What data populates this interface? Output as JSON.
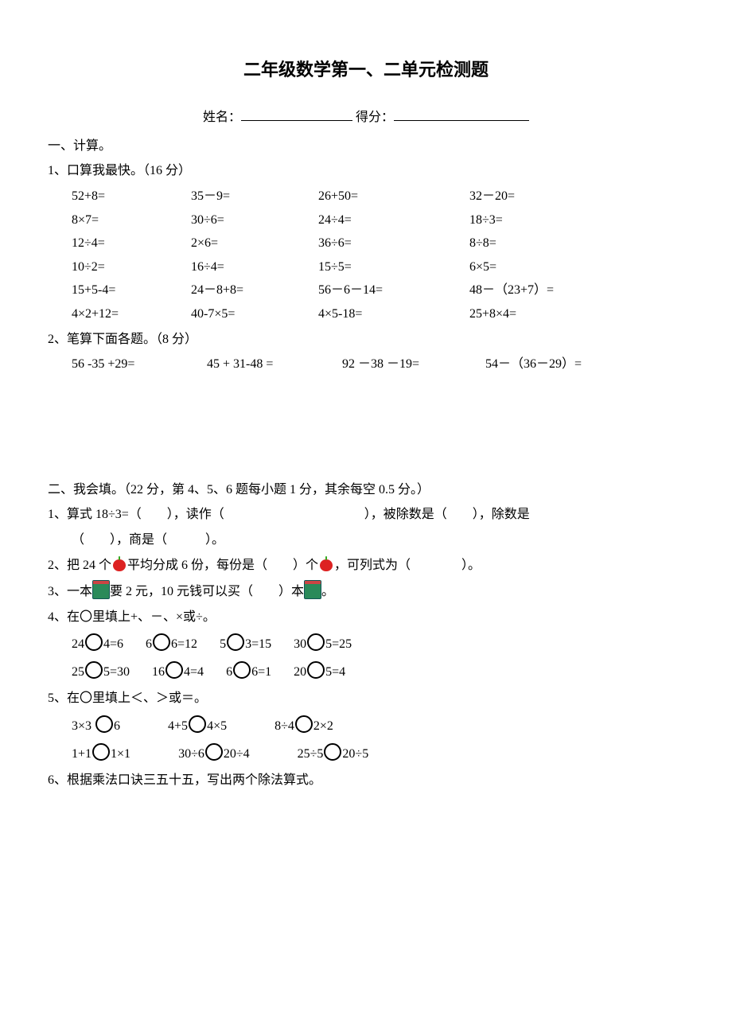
{
  "title": "二年级数学第一、二单元检测题",
  "info": {
    "name_label": "姓名：",
    "score_label": "得分："
  },
  "s1": {
    "heading": "一、计算。",
    "q1": {
      "label": "1、口算我最快。（16 分）",
      "rows": [
        [
          "52+8=",
          "35－9=",
          "26+50=",
          "32－20="
        ],
        [
          "8×7=",
          "30÷6=",
          "24÷4=",
          "18÷3="
        ],
        [
          "12÷4=",
          "2×6=",
          "36÷6=",
          "8÷8="
        ],
        [
          "10÷2=",
          "16÷4=",
          "15÷5=",
          "6×5="
        ],
        [
          "15+5-4=",
          "24－8+8=",
          "56－6－14=",
          "48－（23+7）="
        ],
        [
          "4×2+12=",
          "40-7×5=",
          "4×5-18=",
          "25+8×4="
        ]
      ]
    },
    "q2": {
      "label": "2、笔算下面各题。（8 分）",
      "rows": [
        [
          "56 -35 +29=",
          "45 + 31-48 =",
          "92 －38 －19=",
          "54－（36－29）="
        ]
      ]
    }
  },
  "s2": {
    "heading": "二、我会填。（22 分，第 4、5、6 题每小题 1 分，其余每空 0.5 分。）",
    "q1a": "1、算式 18÷3=（　　），读作（　　　　　　　　　　　），被除数是（　　），除数是",
    "q1b": "（　　），商是（　　　）。",
    "q2a": "2、把 24 个",
    "q2b": "平均分成 6 份，每份是（　　）个",
    "q2c": "，可列式为（　　　　）。",
    "q3a": "3、一本",
    "q3b": "要 2 元，10 元钱可以买（　　）本",
    "q3c": "。",
    "q4": {
      "label": "4、在〇里填上+、－、×或÷。",
      "rows": [
        [
          [
            "24",
            "4=6"
          ],
          [
            "6",
            "6=12"
          ],
          [
            "5",
            "3=15"
          ],
          [
            "30",
            "5=25"
          ]
        ],
        [
          [
            "25",
            "5=30"
          ],
          [
            "16",
            "4=4"
          ],
          [
            "6",
            "6=1"
          ],
          [
            "20",
            "5=4"
          ]
        ]
      ]
    },
    "q5": {
      "label": "5、在〇里填上＜、＞或＝。",
      "rows": [
        [
          [
            "3×3 ",
            "6"
          ],
          [
            "4+5",
            "4×5"
          ],
          [
            "8÷4",
            "2×2"
          ]
        ],
        [
          [
            "1+1",
            "1×1"
          ],
          [
            "30÷6",
            "20÷4"
          ],
          [
            "25÷5",
            "20÷5"
          ]
        ]
      ]
    },
    "q6": "6、根据乘法口诀三五十五，写出两个除法算式。"
  }
}
